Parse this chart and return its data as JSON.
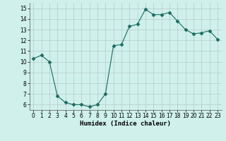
{
  "x": [
    0,
    1,
    2,
    3,
    4,
    5,
    6,
    7,
    8,
    9,
    10,
    11,
    12,
    13,
    14,
    15,
    16,
    17,
    18,
    19,
    20,
    21,
    22,
    23
  ],
  "y": [
    10.3,
    10.6,
    10.0,
    6.8,
    6.2,
    6.0,
    6.0,
    5.8,
    6.0,
    7.0,
    11.5,
    11.6,
    13.3,
    13.5,
    14.9,
    14.4,
    14.4,
    14.6,
    13.8,
    13.0,
    12.6,
    12.7,
    12.9,
    12.1
  ],
  "xlabel": "Humidex (Indice chaleur)",
  "xlim": [
    -0.5,
    23.5
  ],
  "ylim": [
    5.5,
    15.5
  ],
  "yticks": [
    6,
    7,
    8,
    9,
    10,
    11,
    12,
    13,
    14,
    15
  ],
  "xticks": [
    0,
    1,
    2,
    3,
    4,
    5,
    6,
    7,
    8,
    9,
    10,
    11,
    12,
    13,
    14,
    15,
    16,
    17,
    18,
    19,
    20,
    21,
    22,
    23
  ],
  "line_color": "#1a6b60",
  "marker": "D",
  "marker_size": 2.5,
  "bg_color": "#cff0eb",
  "grid_color": "#b8ccc9",
  "tick_fontsize": 5.5,
  "xlabel_fontsize": 6.5
}
